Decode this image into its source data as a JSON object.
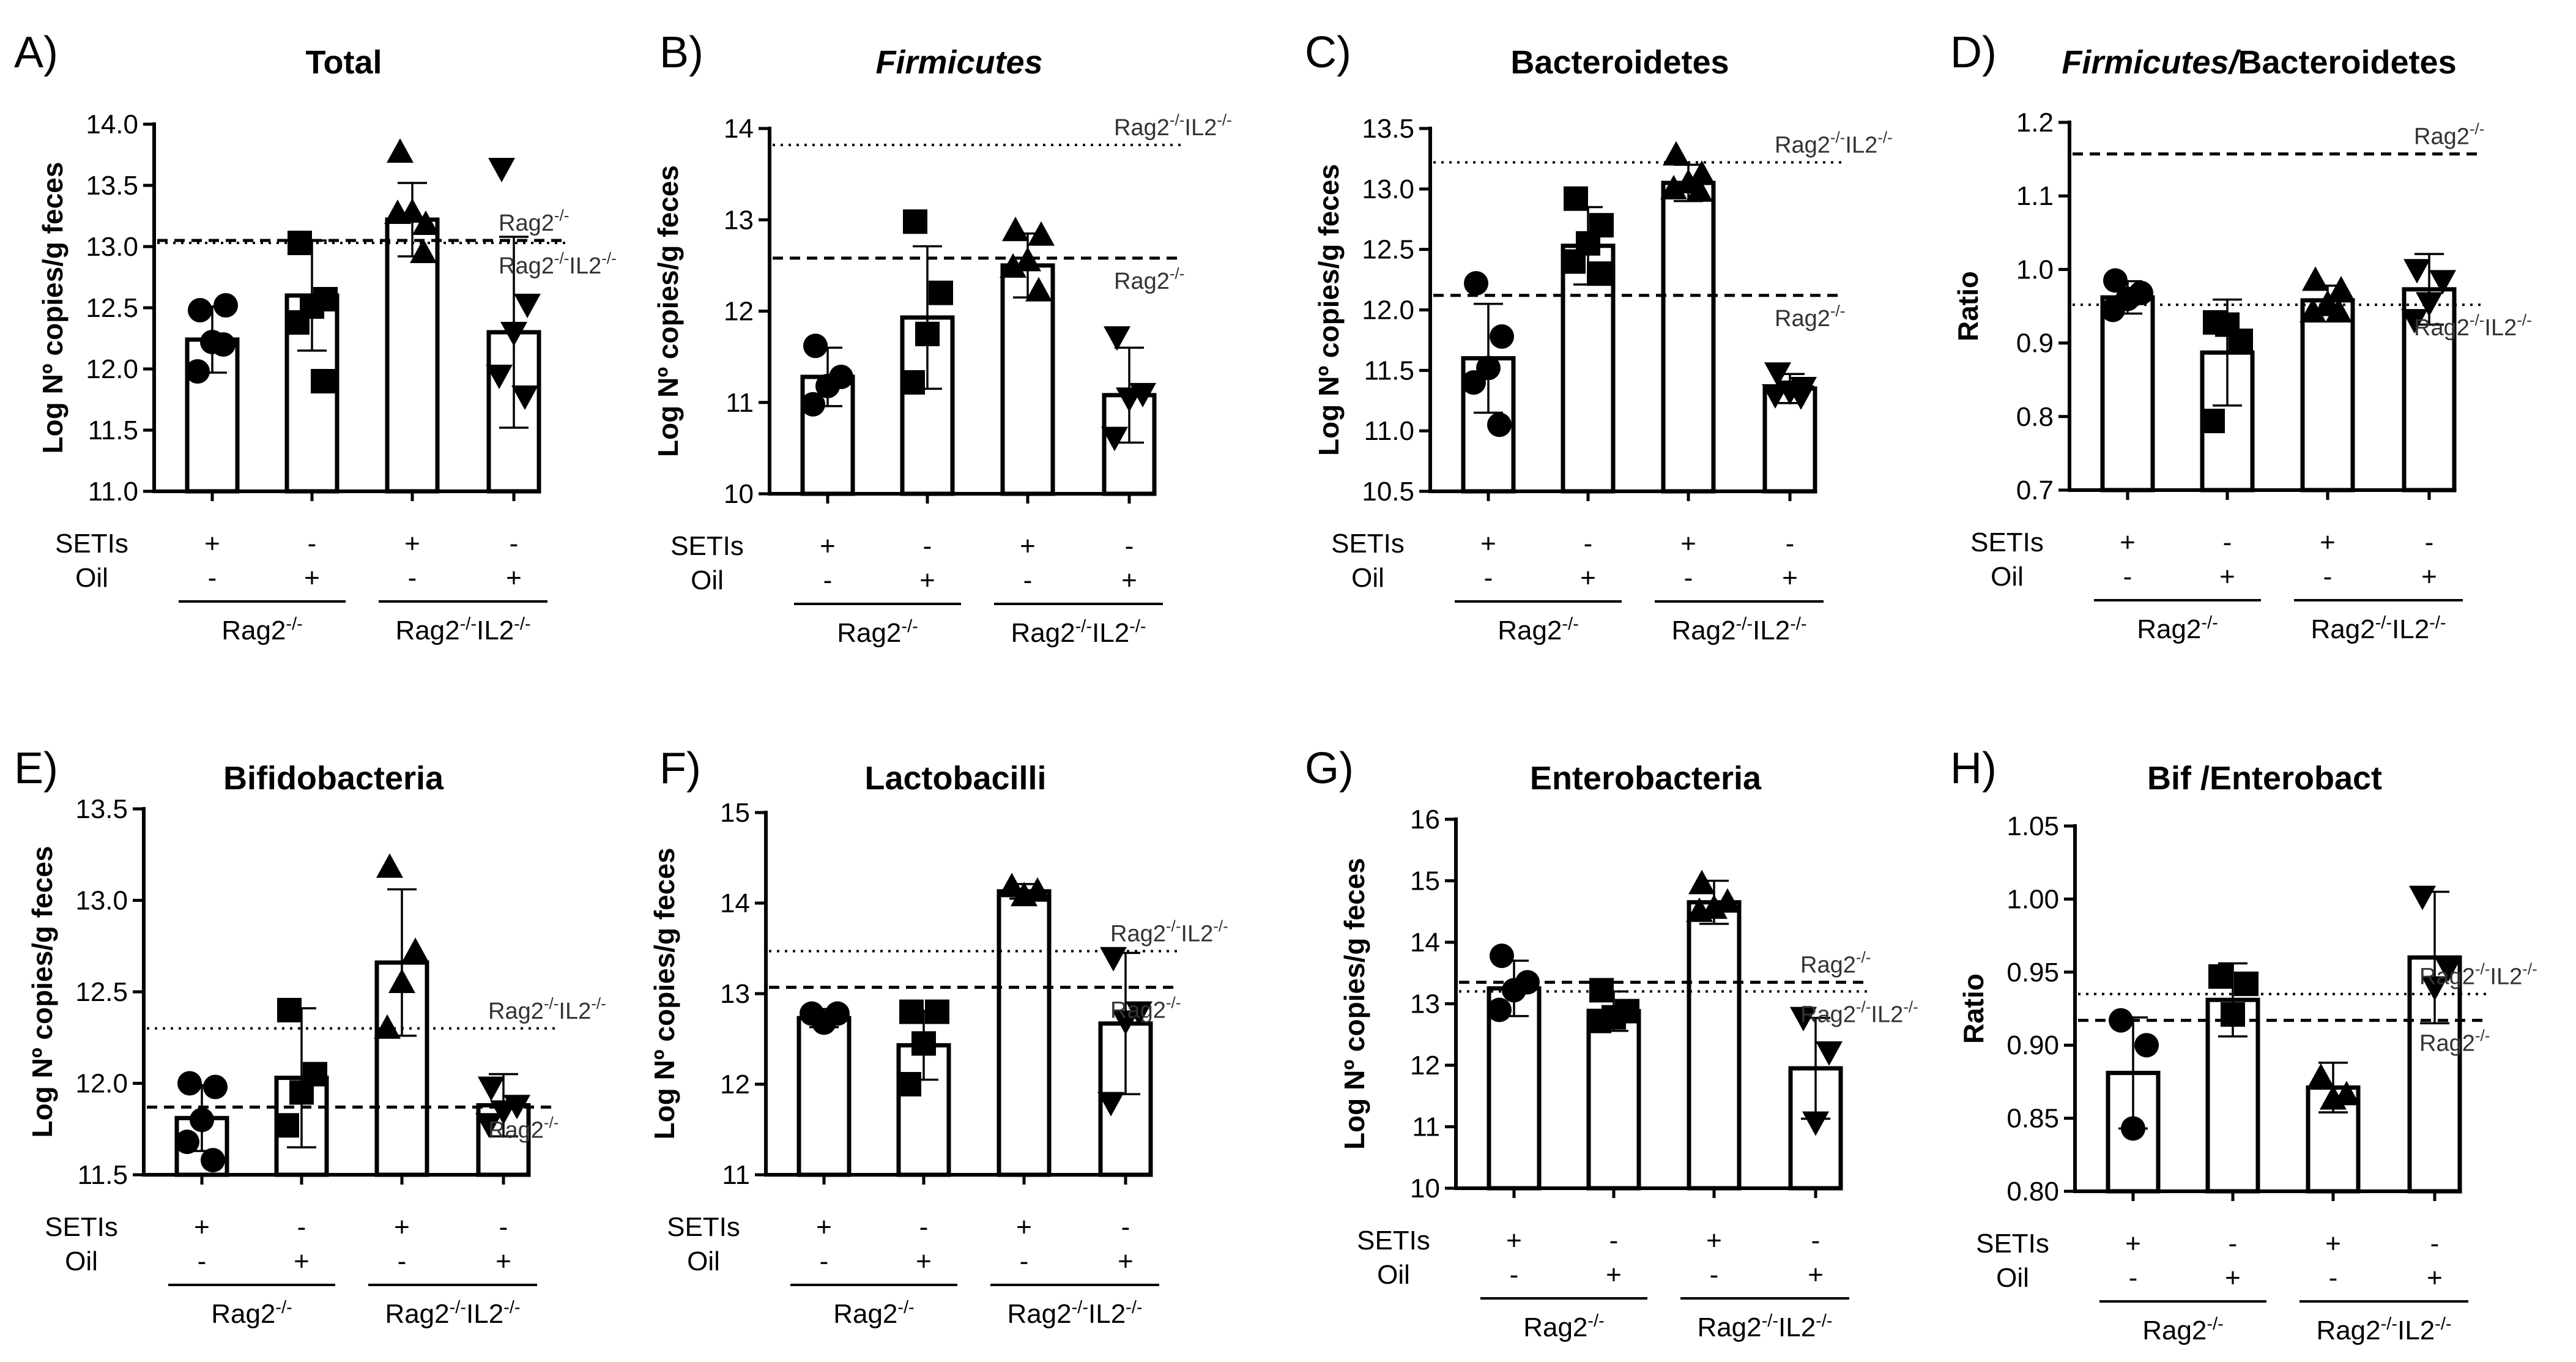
{
  "conditions": [
    {
      "label": "SETIs",
      "values": [
        "+",
        "-",
        "+",
        "-"
      ]
    },
    {
      "label": "Oil",
      "values": [
        "-",
        "+",
        "-",
        "+"
      ]
    }
  ],
  "groups": [
    {
      "name": "Rag2",
      "sup": "-/-",
      "bars": [
        0,
        1
      ]
    },
    {
      "name": "Rag2",
      "sup": "-/-",
      "name2": "IL2",
      "sup2": "-/-",
      "bars": [
        2,
        3
      ]
    }
  ],
  "marker_shapes": [
    "circle",
    "square",
    "triangle-up",
    "triangle-down"
  ],
  "chart_data": [
    {
      "panel": "A)",
      "type": "bar",
      "title": "Total",
      "ylabel": "Log Nº copies/g feces",
      "ylim": [
        11.0,
        14.0
      ],
      "yticks": [
        "11.0",
        "11.5",
        "12.0",
        "12.5",
        "13.0",
        "13.5",
        "14.0"
      ],
      "bars": [
        {
          "mean": 12.24,
          "sd": 0.27,
          "points": [
            12.48,
            12.52,
            12.22,
            11.98,
            12.2
          ]
        },
        {
          "mean": 12.6,
          "sd": 0.45,
          "points": [
            13.03,
            12.57,
            12.51,
            12.38,
            11.9
          ]
        },
        {
          "mean": 13.22,
          "sd": 0.3,
          "points": [
            13.77,
            13.18,
            13.28,
            13.27,
            12.95
          ]
        },
        {
          "mean": 12.3,
          "sd": 0.78,
          "points": [
            13.64,
            12.53,
            12.3,
            11.95,
            11.78
          ]
        }
      ],
      "references": [
        {
          "style": "dashed",
          "value": 13.05,
          "label": "Rag2",
          "sup": "-/-"
        },
        {
          "style": "dotted",
          "value": 13.03,
          "label": "Rag2",
          "sup": "-/-",
          "label2": "IL2",
          "sup2": "-/-"
        }
      ]
    },
    {
      "panel": "B)",
      "type": "bar",
      "title": "Firmicutes",
      "title_italic": true,
      "ylabel": "Log Nº copies/g feces",
      "ylim": [
        10,
        14
      ],
      "yticks": [
        "10",
        "11",
        "12",
        "13",
        "14"
      ],
      "bars": [
        {
          "mean": 11.28,
          "sd": 0.32,
          "points": [
            11.62,
            11.28,
            11.18,
            10.98
          ]
        },
        {
          "mean": 11.93,
          "sd": 0.78,
          "points": [
            12.98,
            12.2,
            11.75,
            11.22
          ]
        },
        {
          "mean": 12.5,
          "sd": 0.35,
          "points": [
            12.88,
            12.83,
            12.55,
            12.48,
            12.22
          ]
        },
        {
          "mean": 11.08,
          "sd": 0.52,
          "points": [
            11.72,
            11.1,
            11.05,
            10.62
          ]
        }
      ],
      "references": [
        {
          "style": "dotted",
          "value": 13.82,
          "label": "Rag2",
          "sup": "-/-",
          "label2": "IL2",
          "sup2": "-/-"
        },
        {
          "style": "dashed",
          "value": 12.58,
          "label": "Rag2",
          "sup": "-/-"
        }
      ]
    },
    {
      "panel": "C)",
      "type": "bar",
      "title": "Bacteroidetes",
      "ylabel": "Log Nº copies/g feces",
      "ylim": [
        10.5,
        13.5
      ],
      "yticks": [
        "10.5",
        "11.0",
        "11.5",
        "12.0",
        "12.5",
        "13.0",
        "13.5"
      ],
      "bars": [
        {
          "mean": 11.6,
          "sd": 0.45,
          "points": [
            12.22,
            11.78,
            11.52,
            11.4,
            11.05
          ]
        },
        {
          "mean": 12.53,
          "sd": 0.32,
          "points": [
            12.92,
            12.7,
            12.55,
            12.4,
            12.3
          ]
        },
        {
          "mean": 13.05,
          "sd": 0.15,
          "points": [
            13.28,
            13.12,
            13.05,
            13.0,
            12.98
          ]
        },
        {
          "mean": 11.35,
          "sd": 0.12,
          "points": [
            11.48,
            11.36,
            11.33,
            11.3,
            11.29
          ]
        }
      ],
      "references": [
        {
          "style": "dotted",
          "value": 13.22,
          "label": "Rag2",
          "sup": "-/-",
          "label2": "IL2",
          "sup2": "-/-"
        },
        {
          "style": "dashed",
          "value": 12.12,
          "label": "Rag2",
          "sup": "-/-"
        }
      ]
    },
    {
      "panel": "D)",
      "type": "bar",
      "title": "Firmicutes/Bacteroidetes",
      "title_italic_part": "Firmicutes/",
      "title_plain_part": "Bacteroidetes",
      "ylabel": "Ratio",
      "ylim": [
        0.7,
        1.2
      ],
      "yticks": [
        "0.7",
        "0.8",
        "0.9",
        "1.0",
        "1.1",
        "1.2"
      ],
      "bars": [
        {
          "mean": 0.962,
          "sd": 0.022,
          "points": [
            0.985,
            0.968,
            0.96,
            0.945
          ]
        },
        {
          "mean": 0.887,
          "sd": 0.072,
          "points": [
            0.928,
            0.903,
            0.925,
            0.794
          ]
        },
        {
          "mean": 0.958,
          "sd": 0.02,
          "points": [
            0.985,
            0.972,
            0.953,
            0.942,
            0.942
          ]
        },
        {
          "mean": 0.973,
          "sd": 0.048,
          "points": [
            1.0,
            0.985,
            0.955,
            0.932
          ]
        }
      ],
      "references": [
        {
          "style": "dashed",
          "value": 1.157,
          "label": "Rag2",
          "sup": "-/-"
        },
        {
          "style": "dotted",
          "value": 0.952,
          "label": "Rag2",
          "sup": "-/-",
          "label2": "IL2",
          "sup2": "-/-"
        }
      ]
    },
    {
      "panel": "E)",
      "type": "bar",
      "title": "Bifidobacteria",
      "ylabel": "Log Nº copies/g feces",
      "ylim": [
        11.5,
        13.5
      ],
      "yticks": [
        "11.5",
        "12.0",
        "12.5",
        "13.0",
        "13.5"
      ],
      "bars": [
        {
          "mean": 11.81,
          "sd": 0.18,
          "points": [
            12.0,
            11.98,
            11.8,
            11.68,
            11.58
          ]
        },
        {
          "mean": 12.03,
          "sd": 0.38,
          "points": [
            12.4,
            12.05,
            11.95,
            11.77
          ]
        },
        {
          "mean": 12.66,
          "sd": 0.4,
          "points": [
            13.18,
            12.72,
            12.55,
            12.3
          ]
        },
        {
          "mean": 11.88,
          "sd": 0.17,
          "points": [
            11.98,
            11.88,
            11.85,
            11.78
          ]
        }
      ],
      "references": [
        {
          "style": "dotted",
          "value": 12.3,
          "label": "Rag2",
          "sup": "-/-",
          "label2": "IL2",
          "sup2": "-/-"
        },
        {
          "style": "dashed",
          "value": 11.87,
          "label": "Rag2",
          "sup": "-/-"
        }
      ]
    },
    {
      "panel": "F)",
      "type": "bar",
      "title": "Lactobacilli",
      "ylabel": "Log Nº copies/g feces",
      "ylim": [
        11,
        15
      ],
      "yticks": [
        "11",
        "12",
        "13",
        "14",
        "15"
      ],
      "bars": [
        {
          "mean": 12.73,
          "sd": 0.1,
          "points": [
            12.78,
            12.78,
            12.68
          ]
        },
        {
          "mean": 12.43,
          "sd": 0.38,
          "points": [
            12.8,
            12.8,
            12.45,
            12.0
          ]
        },
        {
          "mean": 14.13,
          "sd": 0.08,
          "points": [
            14.18,
            14.13,
            14.08
          ]
        },
        {
          "mean": 12.67,
          "sd": 0.78,
          "points": [
            13.4,
            12.8,
            12.7,
            11.8
          ]
        }
      ],
      "references": [
        {
          "style": "dotted",
          "value": 13.47,
          "label": "Rag2",
          "sup": "-/-",
          "label2": "IL2",
          "sup2": "-/-"
        },
        {
          "style": "dashed",
          "value": 13.07,
          "label": "Rag2",
          "sup": "-/-"
        }
      ]
    },
    {
      "panel": "G)",
      "type": "bar",
      "title": "Enterobacteria",
      "ylabel": "Log Nº copies/g feces",
      "ylim": [
        10,
        16
      ],
      "yticks": [
        "10",
        "11",
        "12",
        "13",
        "14",
        "15",
        "16"
      ],
      "bars": [
        {
          "mean": 13.25,
          "sd": 0.45,
          "points": [
            13.78,
            13.35,
            13.22,
            12.9
          ]
        },
        {
          "mean": 12.88,
          "sd": 0.32,
          "points": [
            13.22,
            12.88,
            12.78,
            12.72
          ]
        },
        {
          "mean": 14.65,
          "sd": 0.35,
          "points": [
            14.95,
            14.65,
            14.55,
            14.5
          ]
        },
        {
          "mean": 11.95,
          "sd": 0.82,
          "points": [
            12.78,
            12.22,
            11.08
          ]
        }
      ],
      "references": [
        {
          "style": "dashed",
          "value": 13.35,
          "label": "Rag2",
          "sup": "-/-"
        },
        {
          "style": "dotted",
          "value": 13.2,
          "label": "Rag2",
          "sup": "-/-",
          "label2": "IL2",
          "sup2": "-/-"
        }
      ]
    },
    {
      "panel": "H)",
      "type": "bar",
      "title": "Bif /Enterobact",
      "ylabel": "Ratio",
      "ylim": [
        0.8,
        1.05
      ],
      "yticks": [
        "0.80",
        "0.85",
        "0.90",
        "0.95",
        "1.00",
        "1.05"
      ],
      "bars": [
        {
          "mean": 0.881,
          "sd": 0.038,
          "points": [
            0.917,
            0.9,
            0.843
          ]
        },
        {
          "mean": 0.931,
          "sd": 0.025,
          "points": [
            0.947,
            0.942,
            0.921
          ]
        },
        {
          "mean": 0.871,
          "sd": 0.017,
          "points": [
            0.878,
            0.866,
            0.863
          ]
        },
        {
          "mean": 0.96,
          "sd": 0.045,
          "points": [
            1.002,
            0.953,
            0.94
          ]
        }
      ],
      "references": [
        {
          "style": "dotted",
          "value": 0.935,
          "label": "Rag2",
          "sup": "-/-",
          "label2": "IL2",
          "sup2": "-/-"
        },
        {
          "style": "dashed",
          "value": 0.917,
          "label": "Rag2",
          "sup": "-/-"
        }
      ]
    }
  ]
}
